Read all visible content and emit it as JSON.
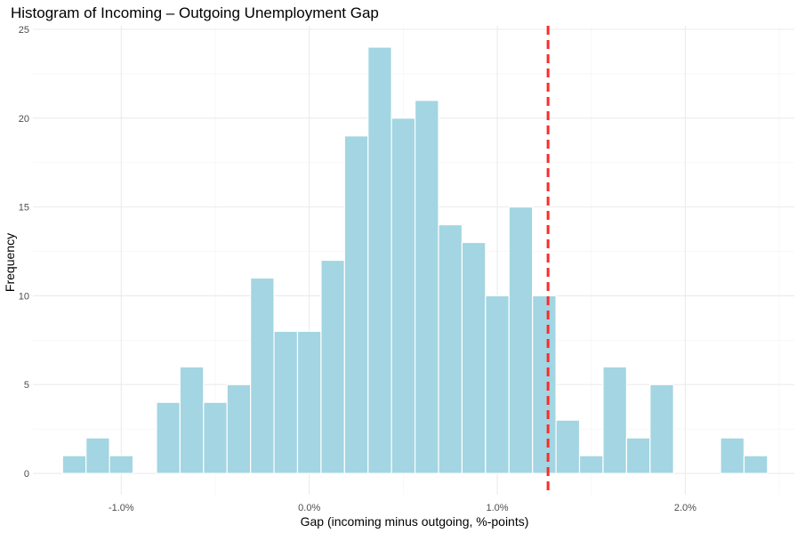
{
  "chart_data": {
    "type": "bar",
    "title": "Histogram of Incoming – Outgoing Unemployment Gap",
    "xlabel": "Gap (incoming minus outgoing, %-points)",
    "ylabel": "Frequency",
    "bin_width": 0.125,
    "bins": [
      {
        "start": -1.3125,
        "count": 1
      },
      {
        "start": -1.1875,
        "count": 2
      },
      {
        "start": -1.0625,
        "count": 1
      },
      {
        "start": -0.9375,
        "count": 0
      },
      {
        "start": -0.8125,
        "count": 4
      },
      {
        "start": -0.6875,
        "count": 6
      },
      {
        "start": -0.5625,
        "count": 4
      },
      {
        "start": -0.4375,
        "count": 5
      },
      {
        "start": -0.3125,
        "count": 11
      },
      {
        "start": -0.1875,
        "count": 8
      },
      {
        "start": -0.0625,
        "count": 8
      },
      {
        "start": 0.0625,
        "count": 12
      },
      {
        "start": 0.1875,
        "count": 19
      },
      {
        "start": 0.3125,
        "count": 24
      },
      {
        "start": 0.4375,
        "count": 20
      },
      {
        "start": 0.5625,
        "count": 21
      },
      {
        "start": 0.6875,
        "count": 14
      },
      {
        "start": 0.8125,
        "count": 13
      },
      {
        "start": 0.9375,
        "count": 10
      },
      {
        "start": 1.0625,
        "count": 15
      },
      {
        "start": 1.1875,
        "count": 10
      },
      {
        "start": 1.3125,
        "count": 3
      },
      {
        "start": 1.4375,
        "count": 1
      },
      {
        "start": 1.5625,
        "count": 6
      },
      {
        "start": 1.6875,
        "count": 2
      },
      {
        "start": 1.8125,
        "count": 5
      },
      {
        "start": 1.9375,
        "count": 0
      },
      {
        "start": 2.0625,
        "count": 0
      },
      {
        "start": 2.1875,
        "count": 2
      },
      {
        "start": 2.3125,
        "count": 1
      }
    ],
    "reference_line": {
      "x": 1.27,
      "color": "#ff2a2a",
      "style": "dashed"
    },
    "x_ticks": [
      {
        "value": -1.0,
        "label": "-1.0%"
      },
      {
        "value": 0.0,
        "label": "0.0%"
      },
      {
        "value": 1.0,
        "label": "1.0%"
      },
      {
        "value": 2.0,
        "label": "2.0%"
      }
    ],
    "y_ticks": [
      {
        "value": 0,
        "label": "0"
      },
      {
        "value": 5,
        "label": "5"
      },
      {
        "value": 10,
        "label": "10"
      },
      {
        "value": 15,
        "label": "15"
      },
      {
        "value": 20,
        "label": "20"
      },
      {
        "value": 25,
        "label": "25"
      }
    ],
    "xlim": [
      -1.47,
      2.58
    ],
    "ylim": [
      -1.2,
      25.2
    ],
    "grid": true,
    "bar_fill": "#a3d5e2",
    "bar_outline": "#ffffff",
    "grid_color": "#ebebeb",
    "background": "#ffffff"
  }
}
